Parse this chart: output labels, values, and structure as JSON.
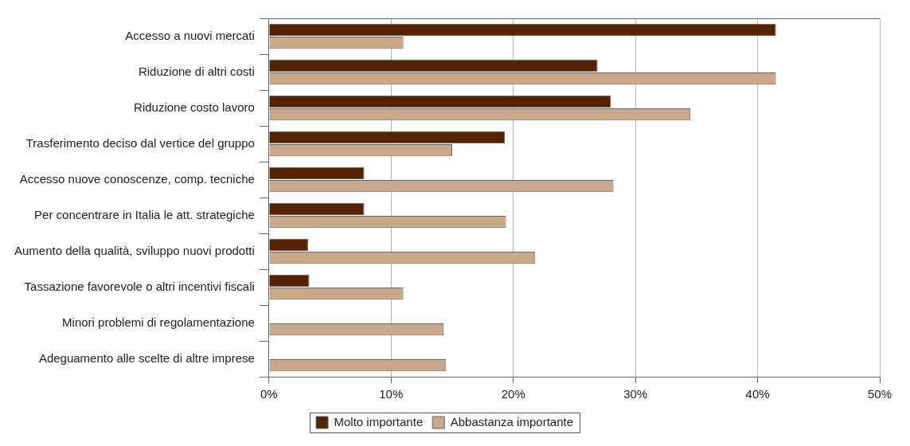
{
  "chart_data": {
    "type": "bar",
    "orientation": "horizontal",
    "categories": [
      "Accesso a nuovi mercati",
      "Riduzione di altri costi",
      "Riduzione costo lavoro",
      "Trasferimento deciso dal vertice del gruppo",
      "Accesso nuove conoscenze, comp. tecniche",
      "Per concentrare in Italia le att. strategiche",
      "Aumento della qualità, sviluppo nuovi prodotti",
      "Tassazione favorevole o altri incentivi fiscali",
      "Minori problemi di regolamentazione",
      "Adeguamento alle scelte di altre imprese"
    ],
    "series": [
      {
        "name": "Molto importante",
        "color": "#552200",
        "values": [
          41.5,
          26.9,
          28.0,
          19.3,
          7.8,
          7.8,
          3.2,
          3.3,
          null,
          null
        ]
      },
      {
        "name": "Abbastanza importante",
        "color": "#caa98b",
        "values": [
          11.0,
          41.5,
          34.5,
          15.0,
          28.2,
          19.4,
          21.8,
          11.0,
          14.3,
          14.5
        ]
      }
    ],
    "xlim": [
      0,
      50
    ],
    "xticks": [
      {
        "value": 0,
        "label": "0%"
      },
      {
        "value": 10,
        "label": "10%"
      },
      {
        "value": 20,
        "label": "20%"
      },
      {
        "value": 30,
        "label": "30%"
      },
      {
        "value": 40,
        "label": "40%"
      },
      {
        "value": 50,
        "label": "50%"
      }
    ],
    "grid": "x",
    "legend": "bottom"
  }
}
